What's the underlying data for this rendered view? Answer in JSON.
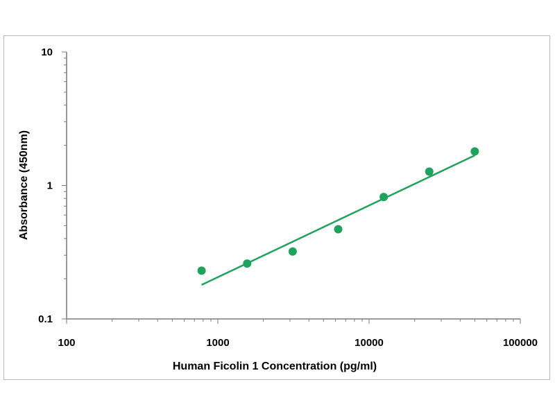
{
  "chart_data": {
    "type": "scatter",
    "xlabel": "Human Ficolin 1 Concentration (pg/ml)",
    "ylabel": "Absorbance (450nm)",
    "xscale": "log",
    "yscale": "log",
    "xlim": [
      100,
      100000
    ],
    "ylim": [
      0.1,
      10
    ],
    "x_ticks": [
      "100",
      "1000",
      "10000",
      "100000"
    ],
    "y_ticks": [
      "0.1",
      "1",
      "10"
    ],
    "grid": false,
    "legend": "none",
    "series": [
      {
        "x": [
          781,
          1563,
          3125,
          6250,
          12500,
          25000,
          50000
        ],
        "y": [
          0.23,
          0.26,
          0.32,
          0.47,
          0.82,
          1.27,
          1.8
        ],
        "color": "#1fa35c",
        "marker": "circle"
      }
    ],
    "fit_line": {
      "x": [
        781,
        50000
      ],
      "y": [
        0.18,
        1.68
      ],
      "color": "#1fa35c"
    }
  }
}
